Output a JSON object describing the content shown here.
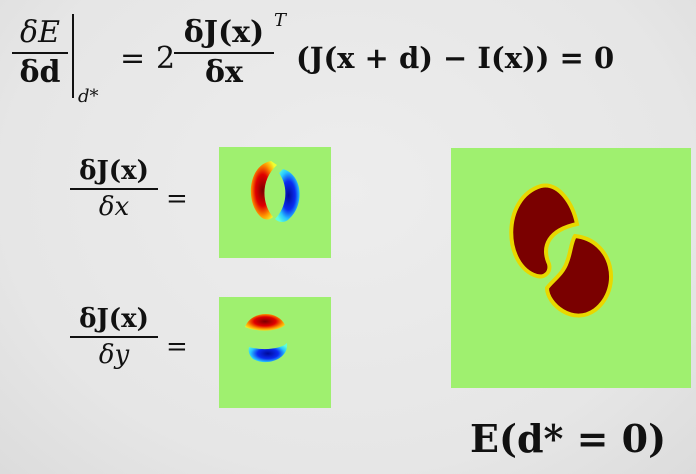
{
  "main_equation": {
    "lhs_num": "δE",
    "lhs_den": "δd",
    "eval_point": "d*",
    "equals_1": "=",
    "coef": "2",
    "jac_num": "δJ(x)",
    "jac_den": "δx",
    "transpose": "T",
    "residual": "(J(x + d) − I(x)) = 0"
  },
  "gradient_x": {
    "num": "δJ(x)",
    "den": "δx",
    "equals": "="
  },
  "gradient_y": {
    "num": "δJ(x)",
    "den": "δy",
    "equals": "="
  },
  "energy_caption": "E(d* = 0)",
  "colors": {
    "background": "#e9e9e9",
    "field_green": "#9ff06f",
    "blob_dark_red": "#7a0000",
    "positive_red": "#cc0000",
    "negative_blue": "#0a14c8"
  }
}
